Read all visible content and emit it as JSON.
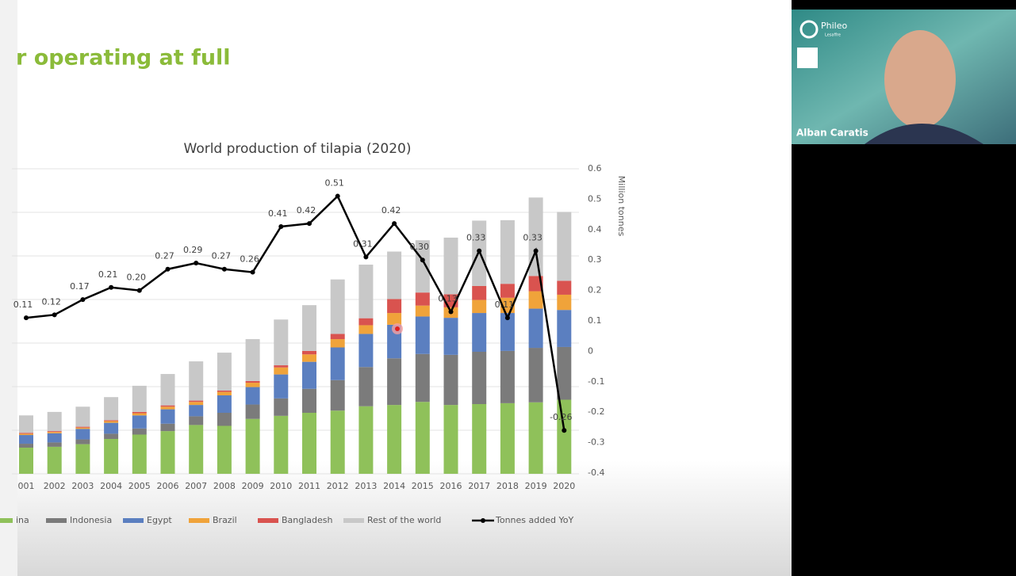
{
  "slide": {
    "title": "r operating at full"
  },
  "chart_data": {
    "type": "bar",
    "stacked": true,
    "title": "World production of tilapia (2020)",
    "y2_label": "Million tonnes",
    "categories": [
      "001",
      "2002",
      "2003",
      "2004",
      "2005",
      "2006",
      "2007",
      "2008",
      "2009",
      "2010",
      "2011",
      "2012",
      "2013",
      "2014",
      "2015",
      "2016",
      "2017",
      "2018",
      "2019",
      "2020"
    ],
    "ylim": [
      0,
      7
    ],
    "yticks": [
      0,
      1,
      2,
      3,
      4,
      5,
      6,
      7
    ],
    "grid": true,
    "y2lim": [
      -0.4,
      0.6
    ],
    "y2ticks": [
      -0.4,
      -0.3,
      -0.2,
      -0.1,
      0,
      {
        "value": 0.1,
        "label": "0.1"
      },
      0.2,
      0.3,
      0.4,
      0.5,
      0.6
    ],
    "series": [
      {
        "name": "ina",
        "color": "#8fc15a",
        "values": [
          0.6,
          0.62,
          0.68,
          0.8,
          0.9,
          0.98,
          1.12,
          1.1,
          1.26,
          1.33,
          1.4,
          1.45,
          1.55,
          1.58,
          1.65,
          1.58,
          1.6,
          1.62,
          1.64,
          1.7
        ]
      },
      {
        "name": "Indonesia",
        "color": "#7b7b7b",
        "values": [
          0.09,
          0.1,
          0.11,
          0.12,
          0.14,
          0.17,
          0.2,
          0.3,
          0.33,
          0.4,
          0.55,
          0.7,
          0.9,
          1.07,
          1.1,
          1.15,
          1.2,
          1.2,
          1.25,
          1.21
        ]
      },
      {
        "name": "Egypt",
        "color": "#5b7fc0",
        "values": [
          0.2,
          0.21,
          0.24,
          0.25,
          0.3,
          0.33,
          0.26,
          0.4,
          0.4,
          0.55,
          0.62,
          0.75,
          0.76,
          0.77,
          0.86,
          0.85,
          0.89,
          0.87,
          0.9,
          0.85
        ]
      },
      {
        "name": "Brazil",
        "color": "#f0a33a",
        "values": [
          0.03,
          0.03,
          0.03,
          0.04,
          0.05,
          0.06,
          0.07,
          0.08,
          0.1,
          0.16,
          0.17,
          0.19,
          0.2,
          0.27,
          0.25,
          0.24,
          0.3,
          0.35,
          0.4,
          0.35
        ]
      },
      {
        "name": "Bangladesh",
        "color": "#d9534f",
        "values": [
          0.02,
          0.02,
          0.02,
          0.02,
          0.03,
          0.03,
          0.03,
          0.03,
          0.04,
          0.05,
          0.08,
          0.12,
          0.16,
          0.32,
          0.3,
          0.3,
          0.32,
          0.32,
          0.35,
          0.32
        ]
      },
      {
        "name": "Rest of the world",
        "color": "#c8c8c8",
        "values": [
          0.4,
          0.44,
          0.46,
          0.53,
          0.6,
          0.72,
          0.9,
          0.87,
          0.96,
          1.05,
          1.05,
          1.25,
          1.23,
          1.09,
          1.2,
          1.3,
          1.5,
          1.46,
          1.8,
          1.58
        ]
      },
      {
        "name": "Tonnes added YoY",
        "color": "#000000",
        "type": "line",
        "axis": "y2",
        "values": [
          0.11,
          0.12,
          0.17,
          0.21,
          0.2,
          0.27,
          0.29,
          0.27,
          0.26,
          0.41,
          0.42,
          0.51,
          0.31,
          0.42,
          0.3,
          0.13,
          0.33,
          0.11,
          0.33,
          -0.26
        ],
        "value_labels": [
          "0.11",
          "0.12",
          "0.17",
          "0.21",
          "0.20",
          "0.27",
          "0.29",
          "0.27",
          "0.26",
          "0.41",
          "0.42",
          "0.51",
          "0.31",
          "0.42",
          "0.30",
          "0.13",
          "0.33",
          "0.11",
          "0.33",
          "-0.26"
        ]
      }
    ]
  },
  "video": {
    "logo": "Phileo",
    "logo_sub": "Lesaffre",
    "participant": "Alban Caratis"
  }
}
